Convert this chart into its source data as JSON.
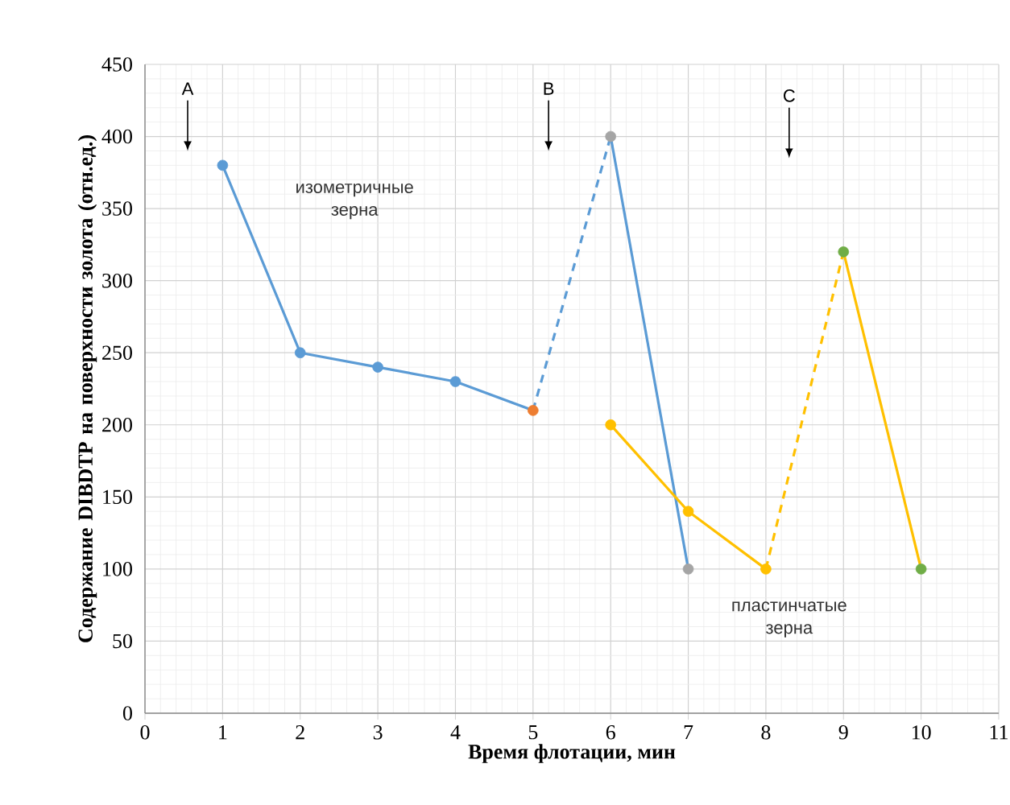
{
  "chart_data": {
    "type": "line",
    "xlabel": "Время флотации, мин",
    "ylabel": "Содержание DIBDTP на поверхности золота (отн.ед.)",
    "xlim": [
      0,
      11
    ],
    "ylim": [
      0,
      450
    ],
    "xticks": [
      0,
      1,
      2,
      3,
      4,
      5,
      6,
      7,
      8,
      9,
      10,
      11
    ],
    "yticks": [
      0,
      50,
      100,
      150,
      200,
      250,
      300,
      350,
      400,
      450
    ],
    "grid": true,
    "series": [
      {
        "x": [
          1,
          2,
          3,
          4,
          5
        ],
        "values": [
          380,
          250,
          240,
          230,
          210
        ],
        "color": "#5b9bd5",
        "line_style": "solid"
      },
      {
        "type": "line",
        "x": [
          5,
          6
        ],
        "values": [
          210,
          400
        ],
        "color": "#5b9bd5",
        "line_style": "dashed"
      },
      {
        "type": "line",
        "x": [
          6,
          7
        ],
        "values": [
          400,
          100
        ],
        "color": "#5b9bd5",
        "line_style": "solid"
      },
      {
        "type": "line",
        "x": [
          6,
          7,
          8
        ],
        "values": [
          200,
          140,
          100
        ],
        "color": "#ffc000",
        "line_style": "solid"
      },
      {
        "type": "line",
        "x": [
          8,
          9
        ],
        "values": [
          100,
          320
        ],
        "color": "#ffc000",
        "line_style": "dashed"
      },
      {
        "type": "line",
        "x": [
          9,
          10
        ],
        "values": [
          320,
          100
        ],
        "color": "#ffc000",
        "line_style": "solid"
      },
      {
        "type": "scatter",
        "marker": "circle",
        "x": [
          1,
          2,
          3,
          4,
          5,
          6,
          7,
          6,
          7,
          8,
          9,
          10
        ],
        "values": [
          380,
          250,
          240,
          230,
          210,
          400,
          100,
          200,
          140,
          100,
          320,
          100
        ],
        "colors": [
          "#5b9bd5",
          "#5b9bd5",
          "#5b9bd5",
          "#5b9bd5",
          "#ed7d31",
          "#a5a5a5",
          "#a5a5a5",
          "#ffc000",
          "#ffc000",
          "#ffc000",
          "#70ad47",
          "#70ad47"
        ]
      }
    ],
    "annotations": [
      "A",
      "B",
      "C",
      "изометричные зерна",
      "пластинчатые зерна"
    ]
  }
}
